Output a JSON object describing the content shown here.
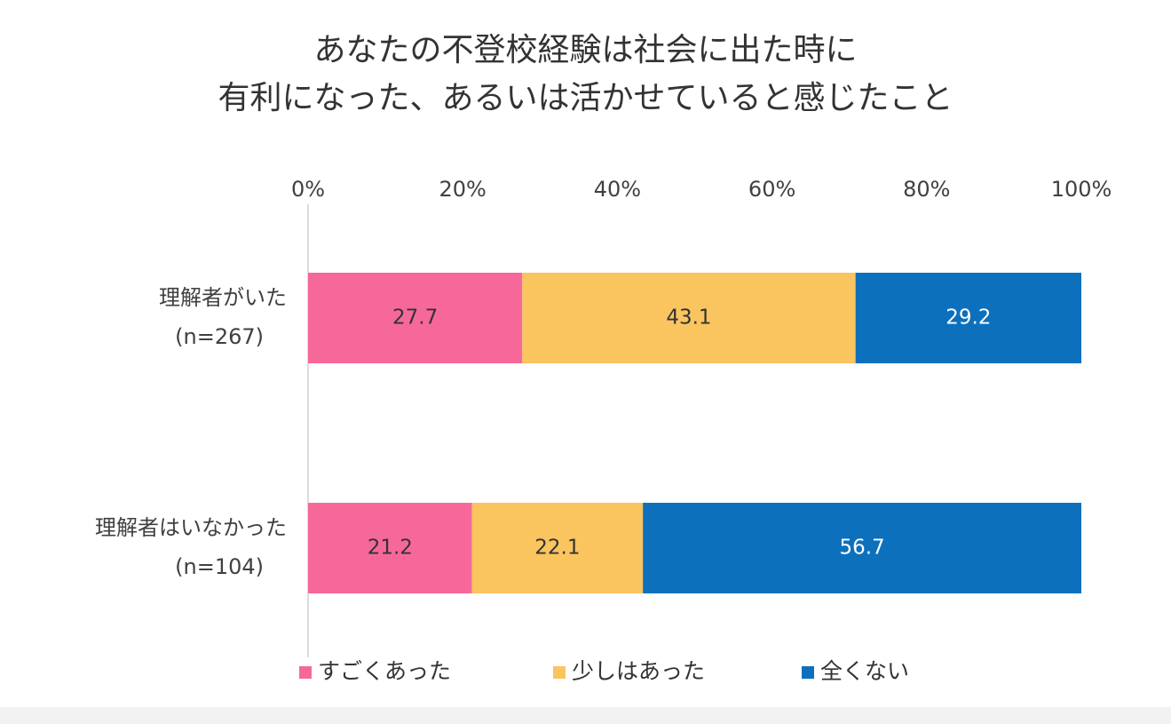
{
  "chart_data": {
    "type": "bar",
    "orientation": "horizontal",
    "stacked": true,
    "title": "あなたの不登校経験は社会に出た時に",
    "subtitle": "有利になった、あるいは活かせていると感じたこと",
    "categories": [
      "理解者がいた",
      "理解者はいなかった"
    ],
    "category_counts": [
      "(n=267)",
      "(n=104)"
    ],
    "series": [
      {
        "name": "すごくあった",
        "color": "#f7689a",
        "label_color": "#333333",
        "values": [
          27.7,
          21.2
        ]
      },
      {
        "name": "少しはあった",
        "color": "#fac45f",
        "label_color": "#333333",
        "values": [
          43.1,
          22.1
        ]
      },
      {
        "name": "全くない",
        "color": "#0c70bd",
        "label_color": "#ffffff",
        "values": [
          29.2,
          56.7
        ]
      }
    ],
    "xlim": [
      0,
      100
    ],
    "x_ticks": [
      "0%",
      "20%",
      "40%",
      "60%",
      "80%",
      "100%"
    ],
    "grid": false,
    "legend_position": "bottom"
  }
}
